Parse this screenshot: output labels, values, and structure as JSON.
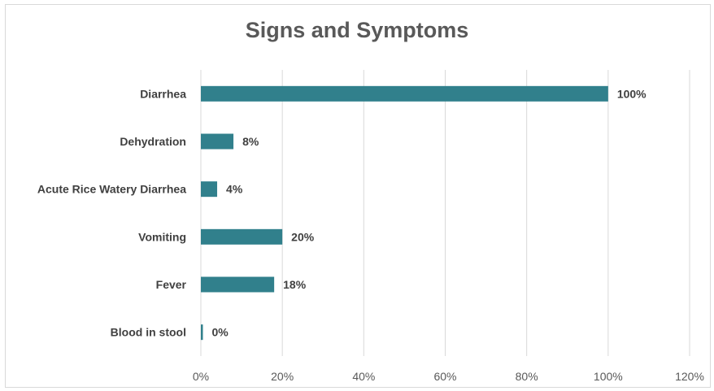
{
  "chart_data": {
    "type": "bar",
    "orientation": "horizontal",
    "title": "Signs and Symptoms",
    "categories": [
      "Diarrhea",
      "Dehydration",
      "Acute Rice Watery Diarrhea",
      "Vomiting",
      "Fever",
      "Blood in stool"
    ],
    "values": [
      100,
      8,
      4,
      20,
      18,
      0.5
    ],
    "data_labels": [
      "100%",
      "8%",
      "4%",
      "20%",
      "18%",
      "0%"
    ],
    "x_ticks": [
      "0%",
      "20%",
      "40%",
      "60%",
      "80%",
      "100%",
      "120%"
    ],
    "xlim": [
      0,
      120
    ],
    "grid": true,
    "bar_color": "#31808c",
    "legend": "none"
  }
}
